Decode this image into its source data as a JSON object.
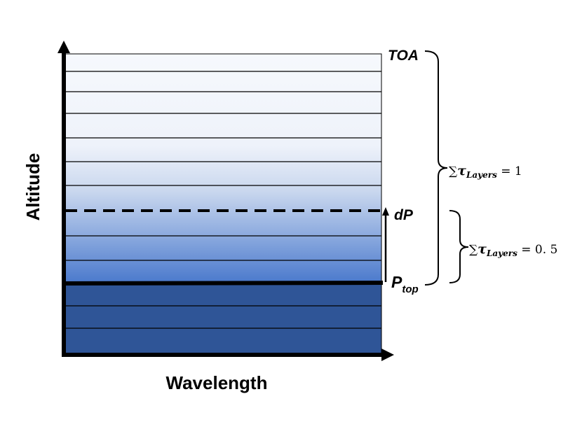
{
  "axes": {
    "x_label": "Wavelength",
    "y_label": "Altitude"
  },
  "labels": {
    "toa": "TOA",
    "dp": "dP",
    "p_top_main": "P",
    "p_top_sub": "top"
  },
  "equations": {
    "total": {
      "sum": "∑",
      "tau": "τ",
      "subscript": "Layers",
      "rhs": " =  1"
    },
    "half": {
      "sum": "∑",
      "tau": "τ",
      "subscript": "Layers",
      "rhs": " =  0. 5"
    }
  },
  "colors": {
    "gradient_top": "#f6f9fd",
    "gradient_mid": "#b6c9e6",
    "gradient_low": "#4f7fcf",
    "lower_block": "#2f5597",
    "line": "#000000"
  }
}
